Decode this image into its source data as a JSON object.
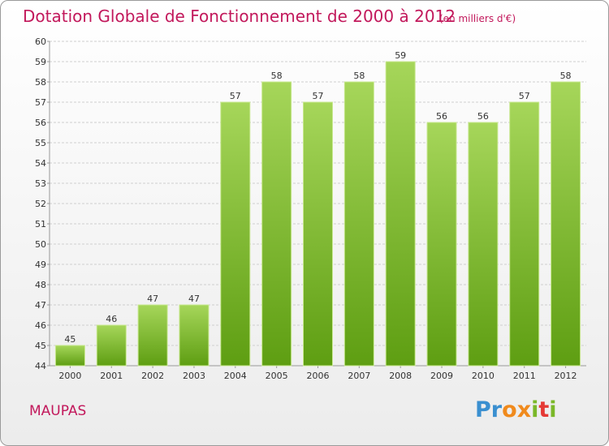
{
  "title": "Dotation Globale de Fonctionnement de 2000 à 2012",
  "unit_note": "(en milliers d'€)",
  "commune": "MAUPAS",
  "logo": {
    "text": "Proxiti"
  },
  "colors": {
    "title": "#c2185b",
    "bar_light": "#a6d65a",
    "bar_dark": "#5e9e12",
    "grid": "#cfcfcf"
  },
  "chart_data": {
    "type": "bar",
    "title": "Dotation Globale de Fonctionnement de 2000 à 2012",
    "xlabel": "",
    "ylabel": "",
    "categories": [
      "2000",
      "2001",
      "2002",
      "2003",
      "2004",
      "2005",
      "2006",
      "2007",
      "2008",
      "2009",
      "2010",
      "2011",
      "2012"
    ],
    "values": [
      45,
      46,
      47,
      47,
      57,
      58,
      57,
      58,
      59,
      56,
      56,
      57,
      58
    ],
    "ylim": [
      44,
      60
    ],
    "yticks": [
      44,
      45,
      46,
      47,
      48,
      49,
      50,
      51,
      52,
      53,
      54,
      55,
      56,
      57,
      58,
      59,
      60
    ],
    "grid": true,
    "data_labels": true
  }
}
